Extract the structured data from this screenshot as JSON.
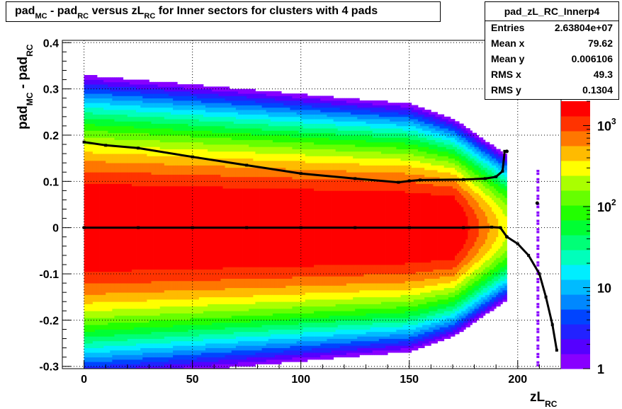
{
  "title": {
    "parts": [
      {
        "t": "pad",
        "sub": "MC"
      },
      {
        "t": " - pad",
        "sub": "RC"
      },
      {
        "t": " versus zL",
        "sub": "RC"
      },
      {
        "t": " for Inner sectors for clusters with 4 pads",
        "sub": ""
      }
    ]
  },
  "stats": {
    "name": "pad_zL_RC_Innerp4",
    "rows": [
      {
        "label": "Entries",
        "value": "2.63804e+07"
      },
      {
        "label": "Mean x",
        "value": "79.62"
      },
      {
        "label": "Mean y",
        "value": "0.006106"
      },
      {
        "label": "RMS x",
        "value": "49.3"
      },
      {
        "label": "RMS y",
        "value": "0.1304"
      }
    ]
  },
  "chart_data": {
    "type": "heatmap",
    "title": "pad_MC - pad_RC versus zL_RC for Inner sectors for clusters with 4 pads",
    "xlabel": {
      "main": "zL",
      "sub": "RC"
    },
    "ylabel": {
      "main1": "pad",
      "sub1": "MC",
      "main2": " - pad",
      "sub2": "RC"
    },
    "xlim": [
      -10,
      220
    ],
    "ylim": [
      -0.305,
      0.405
    ],
    "x_ticks": [
      0,
      50,
      100,
      150,
      200
    ],
    "x_tick_labels": [
      "0",
      "50",
      "100",
      "150",
      "200"
    ],
    "y_ticks": [
      -0.3,
      -0.2,
      -0.1,
      0,
      0.1,
      0.2,
      0.3,
      0.4
    ],
    "y_tick_labels": [
      "-0.3",
      "-0.2",
      "-0.1",
      "0",
      "0.1",
      "0.2",
      "0.3",
      "0.4"
    ],
    "grid": true,
    "z_scale": "log",
    "z_range": [
      1,
      2000
    ],
    "z_tick_labels": [
      {
        "value": 1,
        "base": "1",
        "exp": ""
      },
      {
        "value": 10,
        "base": "10",
        "exp": ""
      },
      {
        "value": 100,
        "base": "10",
        "exp": "2"
      },
      {
        "value": 1000,
        "base": "10",
        "exp": "3"
      }
    ],
    "palette": [
      "#8800ff",
      "#5500ff",
      "#2222ff",
      "#0044ff",
      "#0088ff",
      "#00bbff",
      "#00eeff",
      "#00ffbb",
      "#00ff77",
      "#00ff33",
      "#22ff00",
      "#66ff00",
      "#aaff00",
      "#ffff00",
      "#ffbb00",
      "#ff7700",
      "#ff3300",
      "#ff0000"
    ],
    "density_model": {
      "x_range": [
        0,
        195
      ],
      "x_step": 1,
      "peak_log10": 3.4,
      "sigma_profile": [
        [
          0,
          0.16
        ],
        [
          100,
          0.14
        ],
        [
          150,
          0.13
        ],
        [
          175,
          0.11
        ],
        [
          195,
          0.09
        ]
      ],
      "edge_log10_at_x195": 2.4
    },
    "sparse_column": {
      "x": 209,
      "y_range": [
        -0.3,
        0.13
      ],
      "color": "#8800ff"
    },
    "series": [
      {
        "name": "mean",
        "points": [
          [
            0,
            0.0
          ],
          [
            25,
            0.0
          ],
          [
            50,
            0.0
          ],
          [
            75,
            0.0
          ],
          [
            100,
            0.0
          ],
          [
            125,
            0.0
          ],
          [
            150,
            0.0
          ],
          [
            175,
            0.0
          ],
          [
            188,
            0.001
          ],
          [
            192,
            0.0
          ],
          [
            195,
            -0.02
          ],
          [
            200,
            -0.035
          ],
          [
            205,
            -0.06
          ],
          [
            210,
            -0.1
          ],
          [
            213,
            -0.15
          ],
          [
            216,
            -0.21
          ],
          [
            218,
            -0.265
          ]
        ]
      },
      {
        "name": "rms",
        "points": [
          [
            0,
            0.185
          ],
          [
            10,
            0.178
          ],
          [
            25,
            0.172
          ],
          [
            50,
            0.153
          ],
          [
            75,
            0.135
          ],
          [
            100,
            0.117
          ],
          [
            125,
            0.106
          ],
          [
            145,
            0.098
          ],
          [
            150,
            0.101
          ],
          [
            155,
            0.103
          ],
          [
            175,
            0.104
          ],
          [
            185,
            0.106
          ],
          [
            190,
            0.11
          ],
          [
            193,
            0.122
          ],
          [
            194,
            0.165
          ]
        ]
      }
    ],
    "outlier_markers": [
      [
        195,
        0.165
      ],
      [
        195,
        -0.02
      ],
      [
        209,
        0.053
      ]
    ]
  }
}
